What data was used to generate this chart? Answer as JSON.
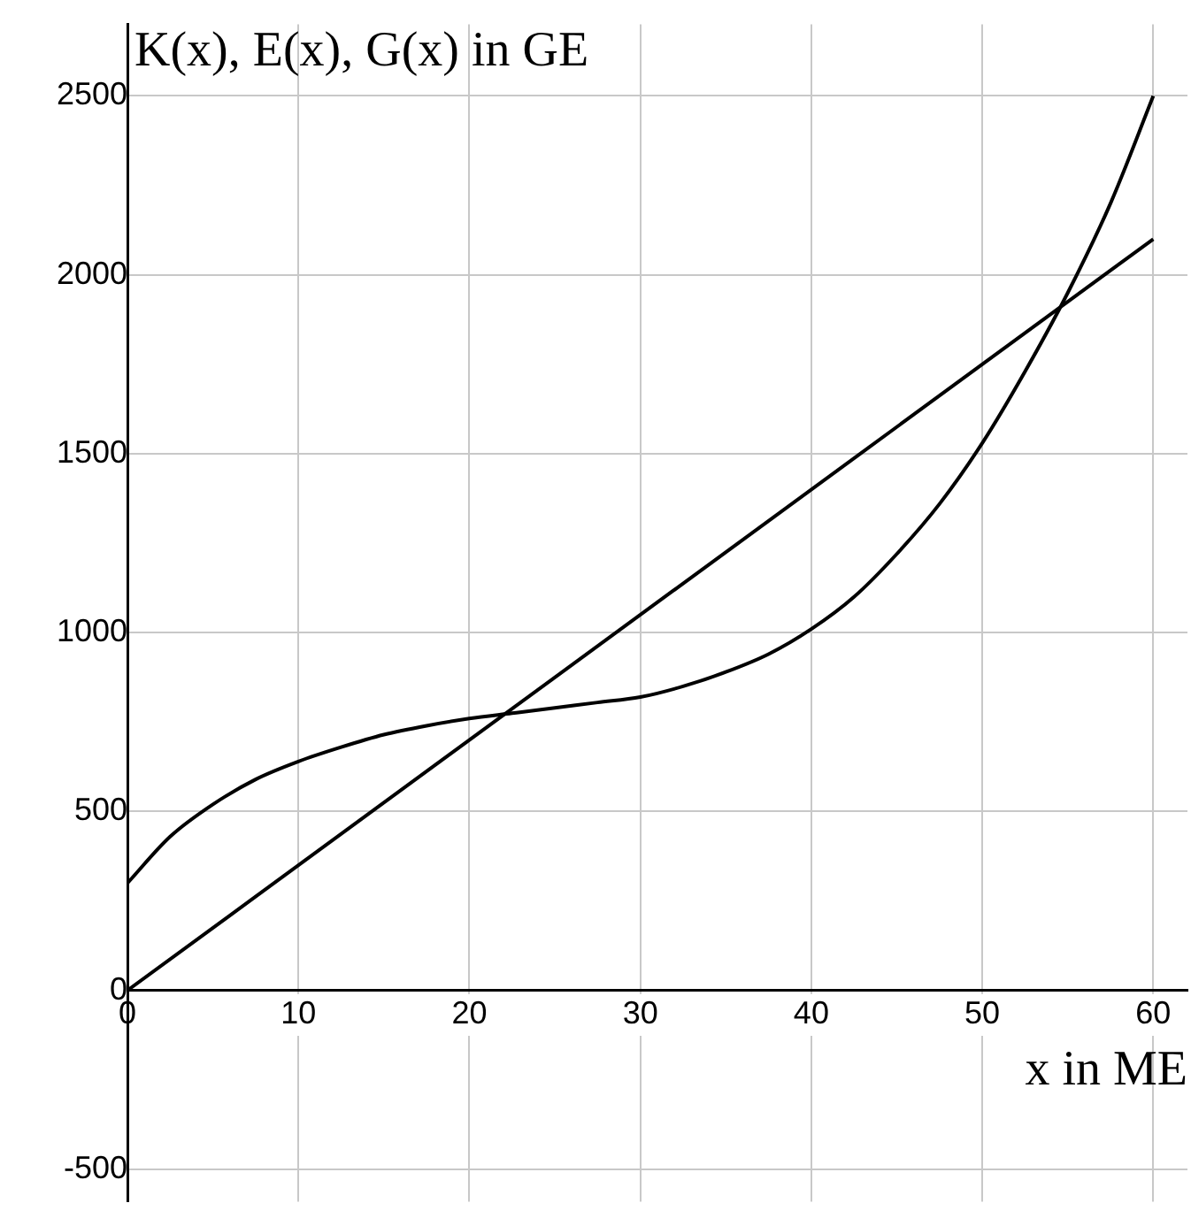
{
  "chart_data": {
    "type": "line",
    "xlabel": "x in ME",
    "ylabel": "K(x), E(x), G(x) in GE",
    "series": [
      {
        "color": "#000000",
        "x": [
          0,
          2.5,
          5,
          7.5,
          10,
          12.5,
          15,
          17.5,
          20,
          22.5,
          25,
          27.5,
          30,
          32.5,
          35,
          37.5,
          40,
          42.5,
          45,
          47.5,
          50,
          52.5,
          55,
          57.5,
          60
        ],
        "values": [
          300,
          430,
          520,
          590,
          640,
          680,
          715,
          740,
          760,
          775,
          790,
          805,
          820,
          850,
          890,
          940,
          1010,
          1100,
          1220,
          1360,
          1530,
          1730,
          1950,
          2200,
          2500
        ]
      },
      {
        "color": "#000000",
        "x": [
          0,
          60
        ],
        "values": [
          0,
          2100
        ]
      }
    ],
    "xlim": [
      0,
      62
    ],
    "ylim": [
      -590,
      2700
    ],
    "xticks": [
      0,
      10,
      20,
      30,
      40,
      50,
      60
    ],
    "yticks": [
      -500,
      0,
      500,
      1000,
      1500,
      2000,
      2500
    ],
    "grid": true,
    "legend": false,
    "marker": "none",
    "line_style": "solid"
  }
}
